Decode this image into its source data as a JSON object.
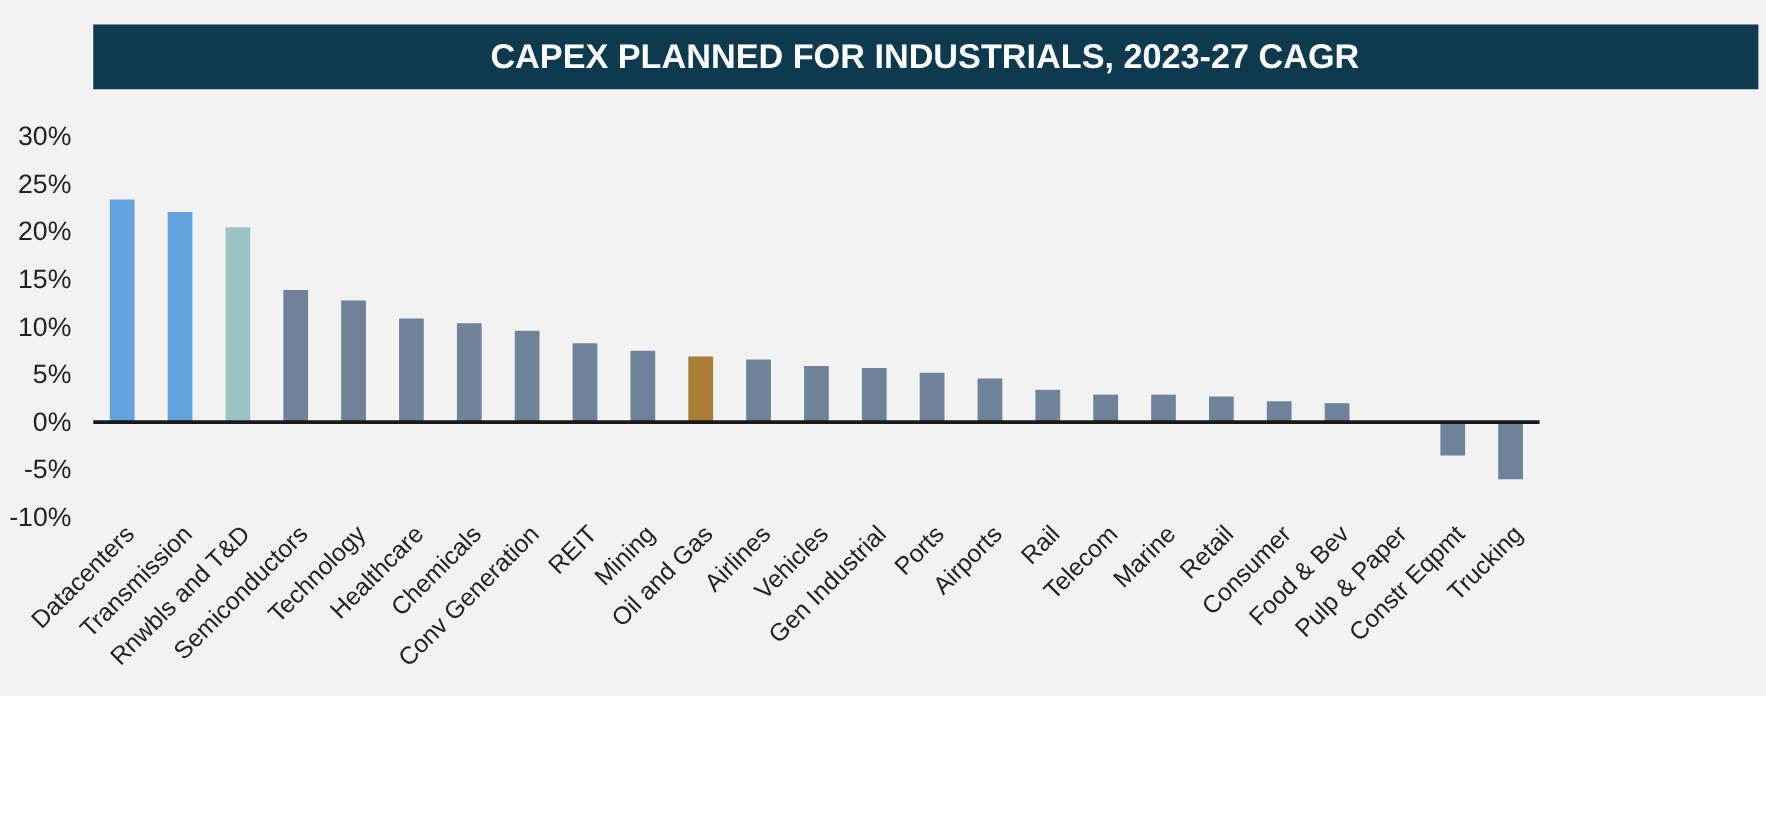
{
  "chart_data": {
    "type": "bar",
    "title": "CAPEX PLANNED FOR INDUSTRIALS, 2023-27 CAGR",
    "categories": [
      "Datacenters",
      "Transmission",
      "Rnwbls and T&D",
      "Semiconductors",
      "Technology",
      "Healthcare",
      "Chemicals",
      "Conv Generation",
      "REIT",
      "Mining",
      "Oil and Gas",
      "Airlines",
      "Vehicles",
      "Gen Industrial",
      "Ports",
      "Airports",
      "Rail",
      "Telecom",
      "Marine",
      "Retail",
      "Consumer",
      "Food & Bev",
      "Pulp & Paper",
      "Constr Eqpmt",
      "Trucking"
    ],
    "values": [
      23.4,
      22.1,
      20.5,
      13.9,
      12.8,
      10.9,
      10.4,
      9.6,
      8.3,
      7.5,
      6.9,
      6.6,
      5.9,
      5.7,
      5.2,
      4.6,
      3.4,
      2.9,
      2.9,
      2.7,
      2.2,
      2.0,
      0,
      -3.5,
      -6.0
    ],
    "colors": [
      "#62a3e0",
      "#62a3e0",
      "#9bc3c3",
      "#6e8399",
      "#6e8399",
      "#6e8399",
      "#6e8399",
      "#6e8399",
      "#6e8399",
      "#6e8399",
      "#a87f35",
      "#6e8399",
      "#6e8399",
      "#6e8399",
      "#6e8399",
      "#6e8399",
      "#6e8399",
      "#6e8399",
      "#6e8399",
      "#6e8399",
      "#6e8399",
      "#6e8399",
      "#6e8399",
      "#6e8399",
      "#6e8399"
    ],
    "ylim": [
      -10,
      30
    ],
    "yticks": [
      {
        "value": 30,
        "label": "30%"
      },
      {
        "value": 25,
        "label": "25%"
      },
      {
        "value": 20,
        "label": "20%"
      },
      {
        "value": 15,
        "label": "15%"
      },
      {
        "value": 10,
        "label": "10%"
      },
      {
        "value": 5,
        "label": "5%"
      },
      {
        "value": 0,
        "label": "0%"
      },
      {
        "value": -5,
        "label": "-5%"
      },
      {
        "value": -10,
        "label": "-10%"
      }
    ],
    "ref_lines": [
      {
        "axis": "y",
        "value": 0,
        "color": "#1a1a1a"
      }
    ],
    "grid": false
  }
}
